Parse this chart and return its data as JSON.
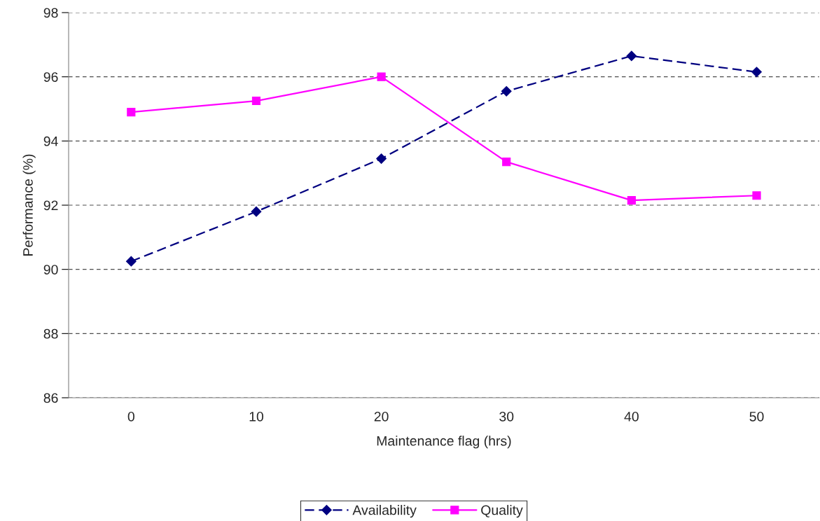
{
  "chart_data": {
    "type": "line",
    "xlabel": "Maintenance flag (hrs)",
    "ylabel": "Performance (%)",
    "categories": [
      "0",
      "10",
      "20",
      "30",
      "40",
      "50"
    ],
    "series": [
      {
        "name": "Availability",
        "color": "#000080",
        "values": [
          90.25,
          91.8,
          93.45,
          95.55,
          96.65,
          96.15
        ],
        "marker": "diamond",
        "line_style": "dashed"
      },
      {
        "name": "Quality",
        "color": "#ff00ff",
        "values": [
          94.9,
          95.25,
          96.0,
          93.35,
          92.15,
          92.3
        ],
        "marker": "square",
        "line_style": "solid"
      }
    ],
    "ylim": [
      86,
      98
    ],
    "yticks": [
      86,
      88,
      90,
      92,
      94,
      96,
      98
    ],
    "grid": "y",
    "legend": "bottom"
  }
}
